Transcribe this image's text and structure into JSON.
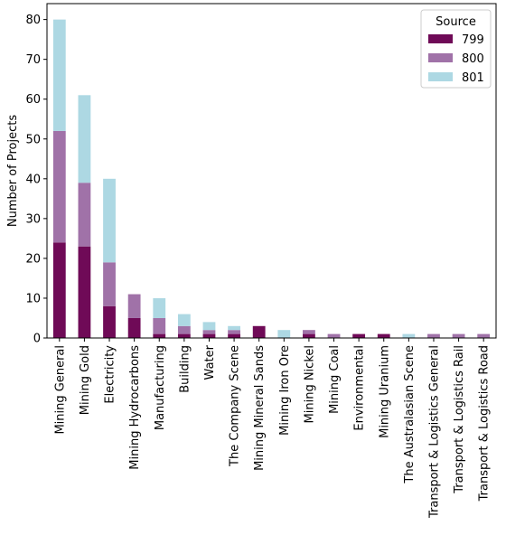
{
  "chart_data": {
    "type": "bar",
    "stacked": true,
    "categories": [
      "Mining General",
      "Mining Gold",
      "Electricity",
      "Mining Hydrocarbons",
      "Manufacturing",
      "Building",
      "Water",
      "The Company Scene",
      "Mining Mineral Sands",
      "Mining Iron Ore",
      "Mining Nickel",
      "Mining Coal",
      "Environmental",
      "Mining Uranium",
      "The Australasian Scene",
      "Transport & Logistics General",
      "Transport & Logistics Rail",
      "Transport & Logistics Road"
    ],
    "series": [
      {
        "name": "799",
        "color": "#6f0a57",
        "values": [
          24,
          23,
          8,
          5,
          1,
          1,
          1,
          1,
          3,
          0,
          1,
          0,
          1,
          1,
          0,
          0,
          0,
          0
        ]
      },
      {
        "name": "800",
        "color": "#a072a8",
        "values": [
          28,
          16,
          11,
          6,
          4,
          2,
          1,
          1,
          0,
          0,
          1,
          1,
          0,
          0,
          0,
          1,
          1,
          1
        ]
      },
      {
        "name": "801",
        "color": "#add8e3",
        "values": [
          28,
          22,
          21,
          0,
          5,
          3,
          2,
          1,
          0,
          2,
          0,
          0,
          0,
          0,
          1,
          0,
          0,
          0
        ]
      }
    ],
    "title": "",
    "xlabel": "",
    "ylabel": "Number of Projects",
    "ylim": [
      0,
      84
    ],
    "yticks": [
      0,
      10,
      20,
      30,
      40,
      50,
      60,
      70,
      80
    ],
    "grid": false,
    "legend": {
      "title": "Source",
      "placement": "top-right"
    }
  }
}
